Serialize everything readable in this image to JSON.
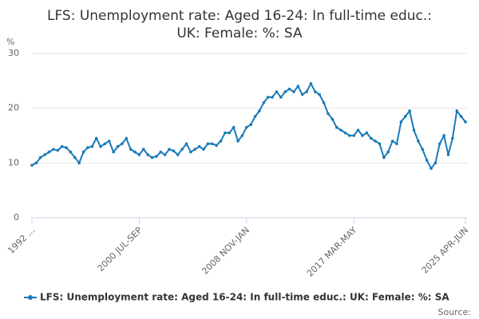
{
  "chart_data": {
    "type": "line",
    "title": [
      "LFS: Unemployment rate: Aged 16-24: In full-time educ.:",
      "UK: Female: %: SA"
    ],
    "y_label": "%",
    "source": "Source:",
    "categories": [
      "1992 ...",
      null,
      null,
      null,
      null,
      null,
      null,
      null,
      null,
      null,
      null,
      null,
      null,
      null,
      null,
      null,
      null,
      null,
      null,
      null,
      null,
      null,
      null,
      null,
      null,
      "2000 JUL-SEP",
      null,
      null,
      null,
      null,
      null,
      null,
      null,
      null,
      null,
      null,
      null,
      null,
      null,
      null,
      null,
      null,
      null,
      null,
      null,
      null,
      null,
      null,
      null,
      null,
      "2008 NOV-JAN",
      null,
      null,
      null,
      null,
      null,
      null,
      null,
      null,
      null,
      null,
      null,
      null,
      null,
      null,
      null,
      null,
      null,
      null,
      null,
      null,
      null,
      null,
      null,
      null,
      "2017 MAR-MAY",
      null,
      null,
      null,
      null,
      null,
      null,
      null,
      null,
      null,
      null,
      null,
      null,
      null,
      null,
      null,
      null,
      null,
      null,
      null,
      null,
      null,
      null,
      null,
      null,
      null,
      "2025 APR-JUN"
    ],
    "series": [
      {
        "name": "LFS: Unemployment rate: Aged 16-24: In full-time educ.: UK: Female: %: SA",
        "color": "#1a7ab8",
        "values": [
          9.6,
          10,
          11,
          11.5,
          12,
          12.5,
          12.3,
          13,
          12.8,
          12,
          11,
          10,
          12,
          12.8,
          13,
          14.5,
          13,
          13.5,
          14,
          12,
          13,
          13.5,
          14.5,
          12.5,
          12,
          11.5,
          12.5,
          11.5,
          11,
          11.2,
          12,
          11.5,
          12.5,
          12.2,
          11.5,
          12.5,
          13.5,
          12,
          12.5,
          13,
          12.5,
          13.5,
          13.5,
          13.2,
          14,
          15.5,
          15.5,
          16.5,
          14,
          15,
          16.5,
          17,
          18.5,
          19.5,
          21,
          22,
          22,
          23,
          22,
          23,
          23.5,
          23,
          24,
          22.5,
          23,
          24.5,
          23,
          22.5,
          21,
          19,
          18,
          16.5,
          16,
          15.5,
          15,
          15,
          16,
          15,
          15.5,
          14.5,
          14,
          13.5,
          11,
          12,
          14,
          13.5,
          17.5,
          18.5,
          19.5,
          16,
          14,
          12.5,
          10.5,
          9,
          10,
          13.5,
          15,
          11.5,
          14.5,
          19.5,
          18.5,
          17.5
        ]
      }
    ],
    "ylim": [
      0,
      30
    ],
    "yticks": [
      0,
      10,
      20,
      30
    ],
    "grid": true
  }
}
